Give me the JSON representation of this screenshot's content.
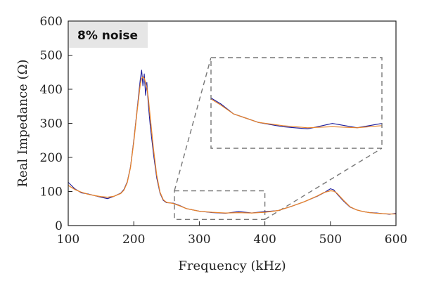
{
  "chart_data": {
    "type": "line",
    "xlabel": "Frequency (kHz)",
    "ylabel": "Real Impedance (Ω)",
    "xlim": [
      100,
      600
    ],
    "ylim": [
      0,
      600
    ],
    "xticks": [
      100,
      200,
      300,
      400,
      500,
      600
    ],
    "yticks": [
      0,
      100,
      200,
      300,
      400,
      500,
      600
    ],
    "annotation": "8% noise",
    "grid": false,
    "legend": "none",
    "zoom_region": {
      "x": [
        262,
        400
      ],
      "y": [
        18,
        102
      ]
    },
    "series": [
      {
        "color": "#1c1c9c",
        "x": [
          100,
          110,
          120,
          130,
          140,
          150,
          160,
          170,
          180,
          185,
          190,
          195,
          200,
          205,
          210,
          212,
          214,
          216,
          218,
          220,
          222,
          225,
          230,
          235,
          240,
          245,
          250,
          260,
          270,
          280,
          290,
          300,
          320,
          340,
          360,
          380,
          400,
          420,
          440,
          460,
          480,
          490,
          500,
          505,
          510,
          520,
          530,
          540,
          550,
          560,
          570,
          580,
          590,
          600
        ],
        "y": [
          127,
          108,
          96,
          93,
          88,
          83,
          79,
          86,
          95,
          106,
          128,
          172,
          250,
          340,
          430,
          456,
          410,
          445,
          382,
          420,
          360,
          295,
          210,
          140,
          95,
          74,
          67,
          66,
          59,
          50,
          46,
          42,
          38,
          36,
          41,
          37,
          41,
          44,
          56,
          70,
          86,
          96,
          108,
          105,
          93,
          72,
          54,
          46,
          41,
          38,
          37,
          35,
          33,
          36
        ]
      },
      {
        "color": "#e8832a",
        "x": [
          100,
          110,
          120,
          130,
          140,
          150,
          160,
          170,
          180,
          185,
          190,
          195,
          200,
          205,
          210,
          212,
          214,
          216,
          218,
          220,
          222,
          225,
          230,
          235,
          240,
          245,
          250,
          260,
          270,
          280,
          290,
          300,
          320,
          340,
          360,
          380,
          400,
          420,
          440,
          460,
          480,
          490,
          500,
          505,
          510,
          520,
          530,
          540,
          550,
          560,
          570,
          580,
          590,
          600
        ],
        "y": [
          118,
          106,
          98,
          92,
          88,
          85,
          83,
          86,
          94,
          104,
          126,
          170,
          245,
          335,
          415,
          432,
          436,
          432,
          420,
          405,
          378,
          320,
          225,
          148,
          98,
          76,
          68,
          65,
          58,
          50,
          46,
          42,
          39,
          37,
          38,
          37,
          39,
          44,
          56,
          70,
          87,
          97,
          102,
          101,
          95,
          74,
          55,
          46,
          41,
          38,
          36,
          35,
          34,
          34
        ]
      }
    ]
  }
}
